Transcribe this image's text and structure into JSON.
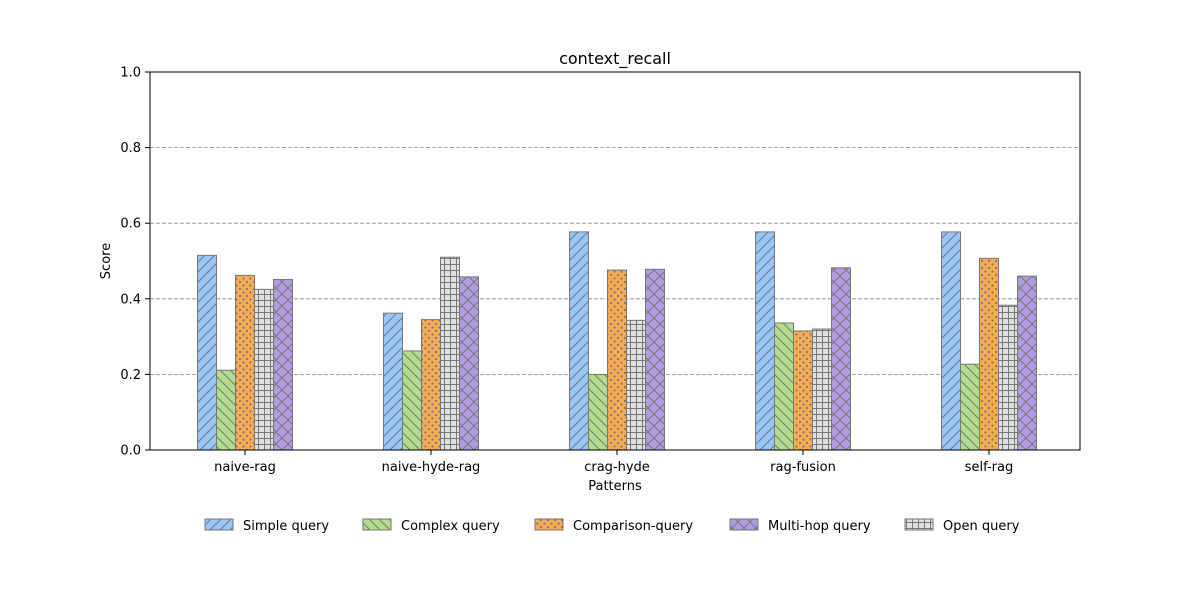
{
  "chart_data": {
    "type": "bar",
    "title": "context_recall",
    "xlabel": "Patterns",
    "ylabel": "Score",
    "ylim": [
      0,
      1.0
    ],
    "yticks": [
      "0.0",
      "0.2",
      "0.4",
      "0.6",
      "0.8",
      "1.0"
    ],
    "grid": "horizontal dashed at 0.2, 0.4, 0.6, 0.8",
    "legend_position": "bottom-center",
    "categories": [
      "naive-rag",
      "naive-hyde-rag",
      "crag-hyde",
      "rag-fusion",
      "self-rag"
    ],
    "series": [
      {
        "name": "Simple query",
        "color": "#99c6f9",
        "hatch": "diagonal",
        "values": [
          0.515,
          0.362,
          0.577,
          0.577,
          0.577
        ]
      },
      {
        "name": "Complex query",
        "color": "#b2dd8f",
        "hatch": "back-diagonal",
        "values": [
          0.211,
          0.262,
          0.2,
          0.336,
          0.227
        ]
      },
      {
        "name": "Comparison-query",
        "color": "#f8ab55",
        "hatch": "dots",
        "values": [
          0.462,
          0.345,
          0.476,
          0.315,
          0.507
        ]
      },
      {
        "name": "Open query",
        "color": "#e0e0e0",
        "hatch": "grid",
        "values": [
          0.425,
          0.51,
          0.343,
          0.32,
          0.383
        ]
      },
      {
        "name": "Multi-hop query",
        "color": "#b19ce3",
        "hatch": "cross",
        "values": [
          0.451,
          0.458,
          0.478,
          0.482,
          0.46
        ]
      }
    ],
    "legend_order": [
      "Simple query",
      "Complex query",
      "Comparison-query",
      "Multi-hop query",
      "Open query"
    ]
  }
}
